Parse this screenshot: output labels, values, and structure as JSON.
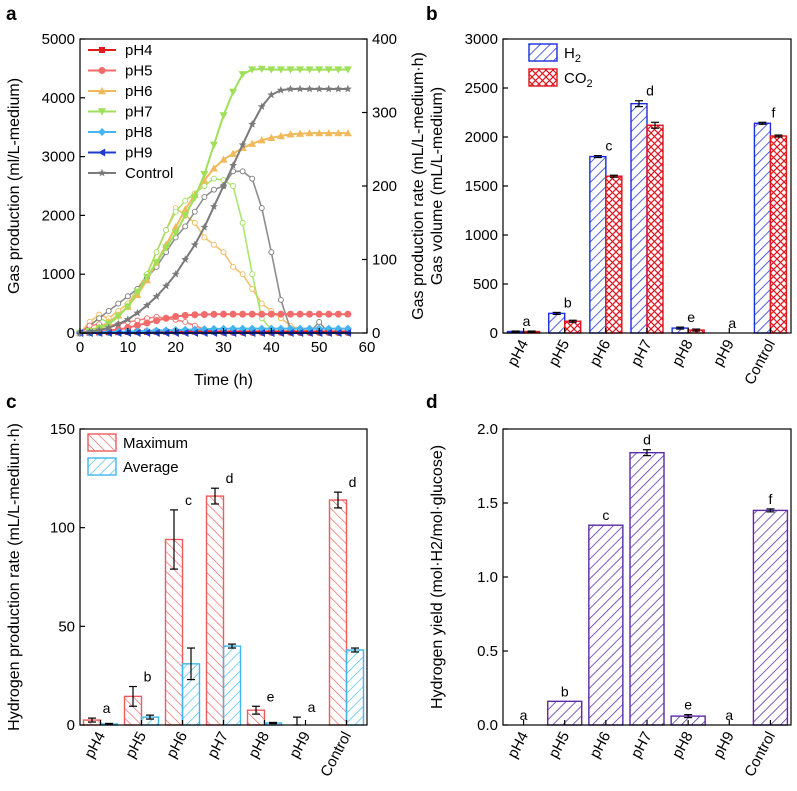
{
  "figure": {
    "panel_labels": [
      "a",
      "b",
      "c",
      "d"
    ]
  },
  "chart_data": [
    {
      "id": "a",
      "type": "line",
      "xlabel": "Time (h)",
      "ylabel": "Gas production (ml/L-medium)",
      "y2label": "Gas production rate (mL/L-medium·h)",
      "xlim": [
        0,
        60
      ],
      "ylim": [
        0,
        5000
      ],
      "y2lim": [
        0,
        400
      ],
      "xticks": [
        0,
        10,
        20,
        30,
        40,
        50,
        60
      ],
      "yticks": [
        0,
        1000,
        2000,
        3000,
        4000,
        5000
      ],
      "y2ticks": [
        0,
        100,
        200,
        300,
        400
      ],
      "legend": [
        "pH4",
        "pH5",
        "pH6",
        "pH7",
        "pH8",
        "pH9",
        "Control"
      ],
      "colors": [
        "#e41a1c",
        "#f26b6b",
        "#f0b95b",
        "#9fe05a",
        "#45b5f0",
        "#1f3ccf",
        "#7a7a7a"
      ],
      "markers": [
        "square",
        "circle",
        "triangle",
        "triangle-down",
        "diamond",
        "triangle-left",
        "star"
      ],
      "x": [
        0,
        2,
        4,
        6,
        8,
        10,
        12,
        14,
        16,
        18,
        20,
        22,
        24,
        26,
        28,
        30,
        32,
        34,
        36,
        38,
        40,
        42,
        44,
        46,
        48,
        50,
        52,
        54,
        56
      ],
      "series": [
        {
          "name": "pH4",
          "values": [
            0,
            5,
            10,
            12,
            15,
            18,
            20,
            20,
            22,
            22,
            25,
            25,
            25,
            25,
            25,
            25,
            25,
            25,
            25,
            25,
            25,
            25,
            25,
            25,
            25,
            25,
            25,
            25,
            25
          ]
        },
        {
          "name": "pH5",
          "values": [
            0,
            10,
            20,
            40,
            60,
            90,
            130,
            170,
            210,
            250,
            280,
            300,
            310,
            315,
            318,
            320,
            320,
            320,
            320,
            320,
            320,
            320,
            320,
            320,
            320,
            320,
            320,
            320,
            320
          ]
        },
        {
          "name": "pH6",
          "values": [
            0,
            40,
            100,
            180,
            300,
            450,
            650,
            900,
            1200,
            1500,
            1800,
            2100,
            2350,
            2600,
            2800,
            2950,
            3050,
            3150,
            3220,
            3280,
            3320,
            3350,
            3380,
            3390,
            3400,
            3400,
            3400,
            3400,
            3400
          ]
        },
        {
          "name": "pH7",
          "values": [
            0,
            30,
            80,
            150,
            280,
            450,
            700,
            950,
            1200,
            1450,
            1700,
            2000,
            2300,
            2700,
            3200,
            3700,
            4100,
            4400,
            4480,
            4490,
            4480,
            4480,
            4480,
            4480,
            4480,
            4480,
            4480,
            4480,
            4480
          ]
        },
        {
          "name": "pH8",
          "values": [
            0,
            5,
            10,
            15,
            20,
            25,
            30,
            35,
            40,
            45,
            50,
            55,
            60,
            65,
            70,
            72,
            74,
            75,
            75,
            75,
            75,
            75,
            75,
            75,
            75,
            75,
            75,
            75,
            75
          ]
        },
        {
          "name": "pH9",
          "values": [
            0,
            0,
            0,
            0,
            0,
            0,
            0,
            0,
            0,
            0,
            0,
            0,
            0,
            0,
            0,
            0,
            0,
            0,
            0,
            0,
            0,
            0,
            0,
            0,
            0,
            0,
            0,
            0,
            0
          ]
        },
        {
          "name": "Control",
          "values": [
            0,
            20,
            50,
            90,
            150,
            230,
            340,
            470,
            620,
            800,
            1000,
            1250,
            1500,
            1800,
            2150,
            2500,
            2850,
            3200,
            3550,
            3850,
            4050,
            4130,
            4150,
            4150,
            4150,
            4150,
            4150,
            4150,
            4150
          ]
        }
      ],
      "rate_series": [
        {
          "name": "pH6 rate",
          "values": [
            0,
            15,
            25,
            20,
            30,
            40,
            60,
            80,
            110,
            140,
            170,
            160,
            150,
            130,
            120,
            110,
            90,
            80,
            60,
            40,
            30,
            20,
            10,
            5,
            2,
            0,
            0,
            0,
            0
          ]
        },
        {
          "name": "pH7 rate",
          "values": [
            0,
            10,
            20,
            15,
            25,
            35,
            55,
            80,
            110,
            140,
            165,
            180,
            190,
            200,
            210,
            208,
            200,
            150,
            80,
            20,
            5,
            0,
            0,
            0,
            0,
            0,
            0,
            0,
            0
          ]
        },
        {
          "name": "Control rate",
          "values": [
            0,
            10,
            20,
            30,
            40,
            50,
            60,
            75,
            90,
            110,
            130,
            145,
            165,
            185,
            195,
            200,
            220,
            220,
            210,
            170,
            110,
            45,
            5,
            0,
            0,
            15,
            0,
            0,
            0
          ]
        },
        {
          "name": "pH5 rate",
          "values": [
            0,
            10,
            12,
            10,
            12,
            15,
            17,
            20,
            22,
            20,
            18,
            15,
            10,
            5,
            2,
            0,
            0,
            0,
            0,
            0,
            0,
            0,
            0,
            0,
            0,
            0,
            0,
            0,
            0
          ]
        }
      ]
    },
    {
      "id": "b",
      "type": "bar",
      "categories": [
        "pH4",
        "pH5",
        "pH6",
        "pH7",
        "pH8",
        "pH9",
        "Control"
      ],
      "series": [
        {
          "name": "H2",
          "label": "H",
          "sub": "2",
          "values": [
            15,
            200,
            1800,
            2340,
            50,
            0,
            2140
          ],
          "errors": [
            5,
            10,
            10,
            30,
            10,
            0,
            10
          ],
          "color": "#1b2ee0"
        },
        {
          "name": "CO2",
          "label": "CO",
          "sub": "2",
          "values": [
            15,
            120,
            1600,
            2120,
            30,
            0,
            2010
          ],
          "errors": [
            5,
            10,
            10,
            30,
            10,
            0,
            10
          ],
          "color": "#e0141e"
        }
      ],
      "sig_labels": [
        "a",
        "b",
        "c",
        "d",
        "e",
        "a",
        "f"
      ],
      "ylabel": "Gas volume (mL/L-medium)",
      "ylim": [
        0,
        3000
      ],
      "yticks": [
        0,
        500,
        1000,
        1500,
        2000,
        2500,
        3000
      ]
    },
    {
      "id": "c",
      "type": "bar",
      "categories": [
        "pH4",
        "pH5",
        "pH6",
        "pH7",
        "pH8",
        "pH9",
        "Control"
      ],
      "series": [
        {
          "name": "Maximum",
          "values": [
            2.5,
            14.5,
            94,
            116,
            7.5,
            0,
            114
          ],
          "errors": [
            1,
            5,
            15,
            4,
            2,
            4,
            4
          ],
          "color": "#f05a5a"
        },
        {
          "name": "Average",
          "values": [
            0.5,
            4,
            31,
            40,
            1,
            0,
            38
          ],
          "errors": [
            0.3,
            1,
            8,
            1,
            0.3,
            0,
            1
          ],
          "color": "#3fb6ee"
        }
      ],
      "sig_labels": [
        "a",
        "b",
        "c",
        "d",
        "e",
        "a",
        "d"
      ],
      "ylabel": "Hydrogen production rate (mL/L-medium·h)",
      "ylim": [
        0,
        150
      ],
      "yticks": [
        0,
        50,
        100,
        150
      ]
    },
    {
      "id": "d",
      "type": "bar",
      "categories": [
        "pH4",
        "pH5",
        "pH6",
        "pH7",
        "pH8",
        "pH9",
        "Control"
      ],
      "series": [
        {
          "name": "Hydrogen yield",
          "values": [
            0,
            0.16,
            1.35,
            1.84,
            0.06,
            0,
            1.45
          ],
          "errors": [
            0,
            0,
            0,
            0.02,
            0.01,
            0,
            0.01
          ],
          "color": "#5a2aa8"
        }
      ],
      "sig_labels": [
        "a",
        "b",
        "c",
        "d",
        "e",
        "a",
        "f"
      ],
      "ylabel": "Hydrogen yield (mol·H2/mol·glucose)",
      "ylim": [
        0,
        2.0
      ],
      "yticks": [
        "0.0",
        "0.5",
        "1.0",
        "1.5",
        "2.0"
      ],
      "ytick_values": [
        0,
        0.5,
        1.0,
        1.5,
        2.0
      ]
    }
  ]
}
